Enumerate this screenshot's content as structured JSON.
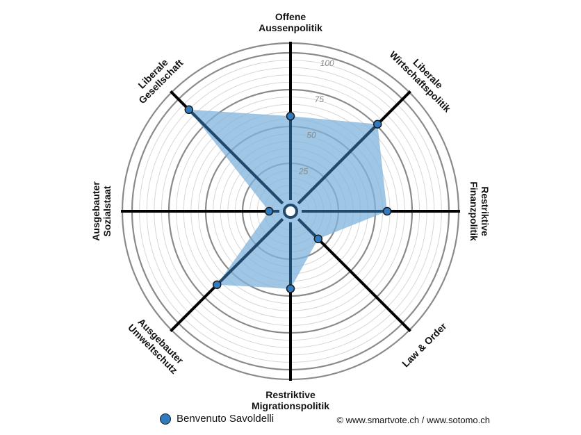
{
  "chart_data": {
    "type": "radar",
    "axes": [
      [
        "Offene",
        "Aussenpolitik"
      ],
      [
        "Liberale",
        "Wirtschaftspolitik"
      ],
      [
        "Restriktive",
        "Finanzpolitik"
      ],
      [
        "Law & Order"
      ],
      [
        "Restriktive",
        "Migrationspolitik"
      ],
      [
        "Ausgebauter",
        "Umweltschutz"
      ],
      [
        "Ausgebauter",
        "Sozialstaat"
      ],
      [
        "Liberale",
        "Gesellschaft"
      ]
    ],
    "series": [
      {
        "name": "Benvenuto Savoldelli",
        "values": [
          57,
          76,
          58,
          19,
          45,
          63,
          7,
          90
        ]
      }
    ],
    "rlim": [
      0,
      100
    ],
    "rticks": [
      25,
      50,
      75,
      100
    ],
    "fill_color": "#7fb3dc",
    "marker_color": "#2e7bbf"
  },
  "legend": {
    "label": "Benvenuto Savoldelli"
  },
  "credit": "© www.smartvote.ch / www.sotomo.ch"
}
